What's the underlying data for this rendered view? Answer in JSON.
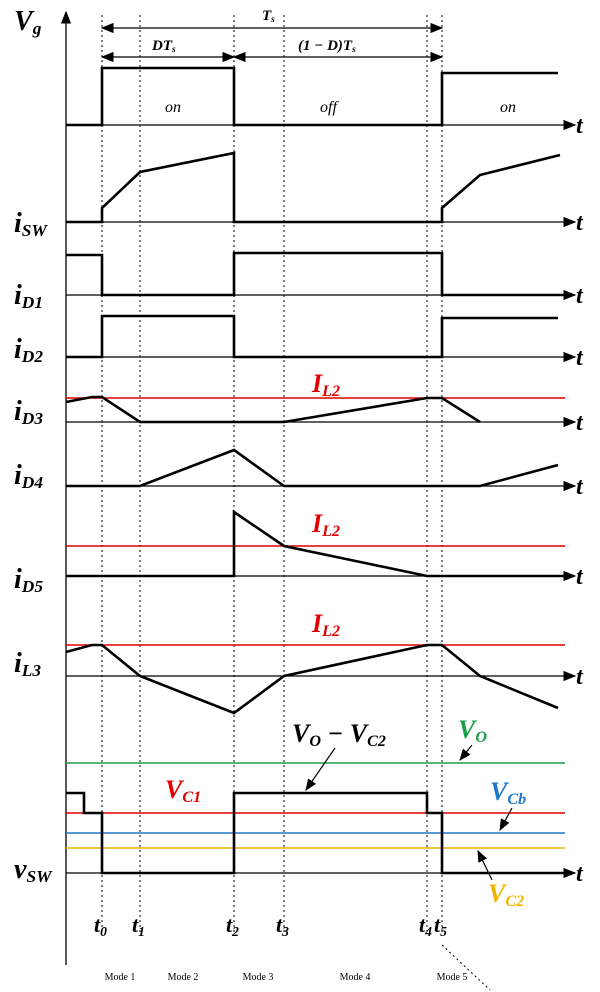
{
  "period": {
    "total": {
      "main": "T",
      "sub": "s"
    },
    "on": {
      "main": "DT",
      "sub": "s"
    },
    "off": {
      "main": "(1 − D)T",
      "sub": "s"
    }
  },
  "states": [
    "on",
    "off",
    "on"
  ],
  "signals": [
    {
      "main": "V",
      "sub": "g",
      "axis": "t"
    },
    {
      "main": "i",
      "sub": "SW",
      "axis": "t"
    },
    {
      "main": "i",
      "sub": "D1",
      "axis": "t"
    },
    {
      "main": "i",
      "sub": "D2",
      "axis": "t"
    },
    {
      "main": "i",
      "sub": "D3",
      "axis": "t"
    },
    {
      "main": "i",
      "sub": "D4",
      "axis": "t"
    },
    {
      "main": "i",
      "sub": "D5",
      "axis": "t"
    },
    {
      "main": "i",
      "sub": "L3",
      "axis": "t"
    },
    {
      "main": "v",
      "sub": "SW",
      "axis": "t"
    }
  ],
  "references": [
    {
      "main": "I",
      "sub": "L2"
    },
    {
      "main": "I",
      "sub": "L2"
    },
    {
      "main": "I",
      "sub": "L2"
    },
    {
      "main": "V",
      "sub": "C1"
    },
    {
      "main": "V",
      "sub": "O"
    },
    {
      "main": "V",
      "sub": "Cb"
    },
    {
      "main": "V",
      "sub": "C2"
    }
  ],
  "difference": {
    "main1": "V",
    "sub1": "O",
    "main2": " − V",
    "sub2": "C2"
  },
  "instants": [
    {
      "main": "t",
      "sub": "0"
    },
    {
      "main": "t",
      "sub": "1"
    },
    {
      "main": "t",
      "sub": "2"
    },
    {
      "main": "t",
      "sub": "3"
    },
    {
      "main": "t",
      "sub": "4"
    },
    {
      "main": "t",
      "sub": "5"
    }
  ],
  "modes": [
    "Mode 1",
    "Mode 2",
    "Mode 3",
    "Mode 4",
    "Mode 5"
  ]
}
